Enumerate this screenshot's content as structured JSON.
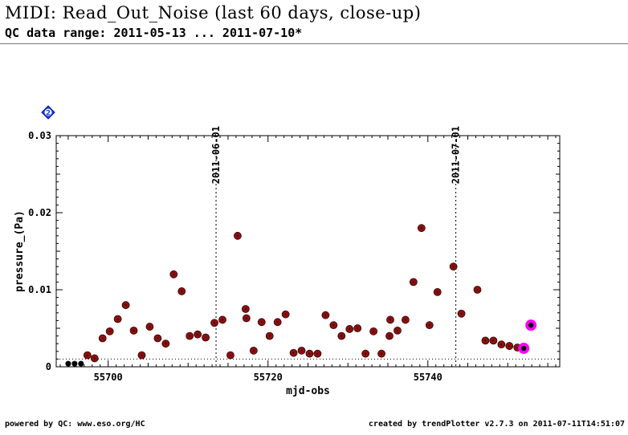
{
  "header": {
    "title": "MIDI: Read_Out_Noise (last 60 days, close-up)",
    "subtitle": "QC data range: 2011-05-13 ... 2011-07-10*"
  },
  "footer": {
    "left": "powered by QC: www.eso.org/HC",
    "right": "created by trendPlotter v2.7.3 on 2011-07-11T14:51:07"
  },
  "badge": {
    "label": "2",
    "color": "#1a3dff"
  },
  "chart_data": {
    "type": "scatter",
    "xlabel": "mjd-obs",
    "ylabel": "pressure_(Pa)",
    "xlim": [
      55693.5,
      55756.5
    ],
    "ylim": [
      0,
      0.03
    ],
    "xticks": [
      55700,
      55720,
      55740
    ],
    "xtick_labels": [
      "55700",
      "55720",
      "55740"
    ],
    "yticks": [
      0,
      0.01,
      0.02,
      0.03
    ],
    "ytick_labels": [
      "0",
      "0.01",
      "0.02",
      "0.03"
    ],
    "date_markers": [
      {
        "x": 55713.5,
        "label": "2011-06-01"
      },
      {
        "x": 55743.5,
        "label": "2011-07-01"
      }
    ],
    "reference_line": 0.001,
    "colors": {
      "main": "#8b1010",
      "old": "#000000",
      "highlight": "#ff00ff"
    },
    "series": [
      {
        "role": "old",
        "x": [
          55695.0,
          55695.8,
          55696.6
        ],
        "y": [
          0.0004,
          0.0004,
          0.0004
        ]
      },
      {
        "role": "main",
        "x": [
          55697.4,
          55698.3,
          55699.3,
          55700.2,
          55701.2,
          55702.2,
          55703.2,
          55704.2,
          55705.2,
          55706.2,
          55707.2,
          55708.2,
          55709.2,
          55710.2,
          55711.2,
          55712.2,
          55713.3,
          55714.3,
          55715.3,
          55716.2,
          55717.2,
          55717.3,
          55718.2,
          55719.2,
          55720.2,
          55721.2,
          55722.2,
          55723.2,
          55724.2,
          55725.2,
          55726.2,
          55727.2,
          55728.2,
          55729.2,
          55730.2,
          55731.2,
          55732.2,
          55733.2,
          55734.2,
          55735.2,
          55735.3,
          55736.2,
          55737.2,
          55738.2,
          55739.2,
          55740.2,
          55741.2,
          55743.2,
          55744.2,
          55746.2,
          55747.2,
          55748.2,
          55749.2,
          55750.2,
          55751.2
        ],
        "y": [
          0.0015,
          0.0011,
          0.0037,
          0.0046,
          0.0062,
          0.008,
          0.0047,
          0.0015,
          0.0052,
          0.0037,
          0.003,
          0.012,
          0.0098,
          0.004,
          0.0042,
          0.0038,
          0.0057,
          0.0061,
          0.0015,
          0.017,
          0.0075,
          0.0063,
          0.0021,
          0.0058,
          0.004,
          0.0058,
          0.0068,
          0.0018,
          0.0021,
          0.0017,
          0.0017,
          0.0067,
          0.0054,
          0.004,
          0.0049,
          0.005,
          0.0017,
          0.0046,
          0.0017,
          0.004,
          0.0061,
          0.0047,
          0.0061,
          0.011,
          0.018,
          0.0054,
          0.0097,
          0.013,
          0.0069,
          0.01,
          0.0034,
          0.0034,
          0.0029,
          0.0027,
          0.0025
        ]
      },
      {
        "role": "highlight",
        "x": [
          55752.0,
          55752.9
        ],
        "y": [
          0.0024,
          0.0054
        ]
      }
    ]
  }
}
